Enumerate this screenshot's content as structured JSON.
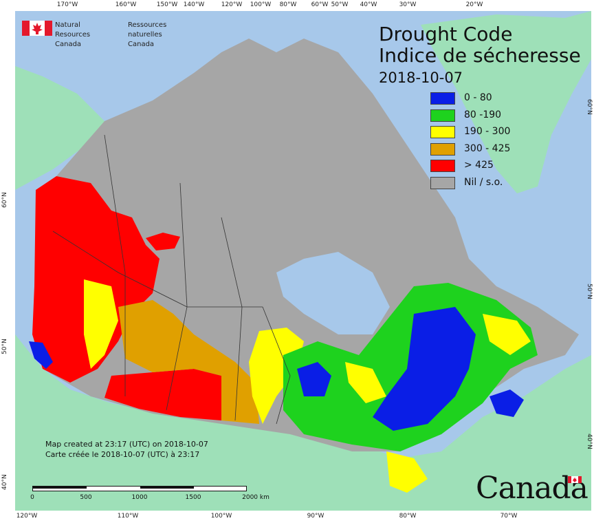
{
  "agency": {
    "name_en": "Natural Resources\nCanada",
    "name_fr": "Ressources naturelles\nCanada"
  },
  "title": {
    "line1": "Drought Code",
    "line2": "Indice de sécheresse",
    "date": "2018-10-07"
  },
  "legend": [
    {
      "label": "0 - 80",
      "color": "#0a1ee6"
    },
    {
      "label": "80 -190",
      "color": "#1ed21e"
    },
    {
      "label": "190 - 300",
      "color": "#ffff00"
    },
    {
      "label": "300 - 425",
      "color": "#e0a000"
    },
    {
      "label": "> 425",
      "color": "#ff0000"
    },
    {
      "label": "Nil / s.o.",
      "color": "#a6a6a6"
    }
  ],
  "credits": {
    "line_en": "Map created at 23:17 (UTC) on 2018-10-07",
    "line_fr": "Carte créée le 2018-10-07 (UTC) à 23:17"
  },
  "scale": {
    "labels": [
      "0",
      "500",
      "1000",
      "1500",
      "2000 km"
    ]
  },
  "wordmark": "Canada",
  "graticule": {
    "top": [
      "170°W",
      "160°W",
      "150°W",
      "140°W",
      "120°W",
      "100°W",
      "80°W",
      "60°W",
      "50°W",
      "40°W",
      "30°W",
      "20°W"
    ],
    "bottom": [
      "120°W",
      "110°W",
      "100°W",
      "90°W",
      "80°W",
      "70°W"
    ],
    "right": [
      "60°N",
      "50°N",
      "40°N"
    ],
    "left": [
      "60°N",
      "50°N",
      "40°N"
    ]
  },
  "colors": {
    "ocean": "#a7c8ea",
    "land_outside": "#9ee0b8",
    "nil": "#a6a6a6",
    "flag_red": "#e4182c"
  }
}
